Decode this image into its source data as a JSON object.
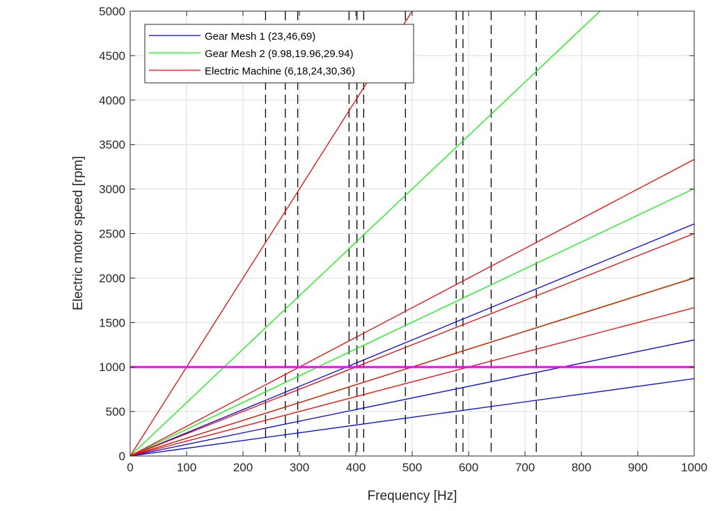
{
  "chart_data": {
    "type": "line",
    "xlabel": "Frequency [Hz]",
    "ylabel": "Electric motor speed [rpm]",
    "xlim": [
      0,
      1000
    ],
    "ylim": [
      0,
      5000
    ],
    "x_ticks": [
      0,
      100,
      200,
      300,
      400,
      500,
      600,
      700,
      800,
      900,
      1000
    ],
    "y_ticks": [
      0,
      500,
      1000,
      1500,
      2000,
      2500,
      3000,
      3500,
      4000,
      4500,
      5000
    ],
    "grid": true,
    "legend_position": "top-left",
    "legend": [
      {
        "label": "Gear Mesh 1 (23,46,69)",
        "color": "#0000ff"
      },
      {
        "label": "Gear Mesh 2 (9.98,19.96,29.94)",
        "color": "#00ff00"
      },
      {
        "label": "Electric Machine (6,18,24,30,36)",
        "color": "#ff0000"
      }
    ],
    "series": [
      {
        "group": "Gear Mesh 1",
        "order": 23,
        "color": "#0000ff",
        "x": [
          0,
          1000
        ],
        "y": [
          0,
          2608.7
        ]
      },
      {
        "group": "Gear Mesh 1",
        "order": 46,
        "color": "#0000ff",
        "x": [
          0,
          1000
        ],
        "y": [
          0,
          1304.3
        ]
      },
      {
        "group": "Gear Mesh 1",
        "order": 69,
        "color": "#0000ff",
        "x": [
          0,
          1000
        ],
        "y": [
          0,
          869.6
        ]
      },
      {
        "group": "Gear Mesh 2",
        "order": 9.98,
        "color": "#00ff00",
        "x": [
          0,
          833
        ],
        "y": [
          0,
          5000
        ]
      },
      {
        "group": "Gear Mesh 2",
        "order": 19.96,
        "color": "#00ff00",
        "x": [
          0,
          1000
        ],
        "y": [
          0,
          3006
        ]
      },
      {
        "group": "Gear Mesh 2",
        "order": 29.94,
        "color": "#00ff00",
        "x": [
          0,
          1000
        ],
        "y": [
          0,
          2004
        ]
      },
      {
        "group": "Electric Machine",
        "order": 6,
        "color": "#ff0000",
        "x": [
          0,
          500
        ],
        "y": [
          0,
          5000
        ]
      },
      {
        "group": "Electric Machine",
        "order": 18,
        "color": "#ff0000",
        "x": [
          0,
          1000
        ],
        "y": [
          0,
          3333.3
        ]
      },
      {
        "group": "Electric Machine",
        "order": 24,
        "color": "#ff0000",
        "x": [
          0,
          1000
        ],
        "y": [
          0,
          2500
        ]
      },
      {
        "group": "Electric Machine",
        "order": 30,
        "color": "#ff0000",
        "x": [
          0,
          1000
        ],
        "y": [
          0,
          2000
        ]
      },
      {
        "group": "Electric Machine",
        "order": 36,
        "color": "#ff0000",
        "x": [
          0,
          1000
        ],
        "y": [
          0,
          1666.7
        ]
      }
    ],
    "horizontal_line": {
      "y": 1000,
      "color": "#ff00ff"
    },
    "vertical_dashed_lines": {
      "color": "#000000",
      "x": [
        240,
        275,
        297,
        388,
        402,
        414,
        488,
        578,
        590,
        640,
        720
      ],
      "y_range": [
        0,
        5000
      ]
    }
  }
}
